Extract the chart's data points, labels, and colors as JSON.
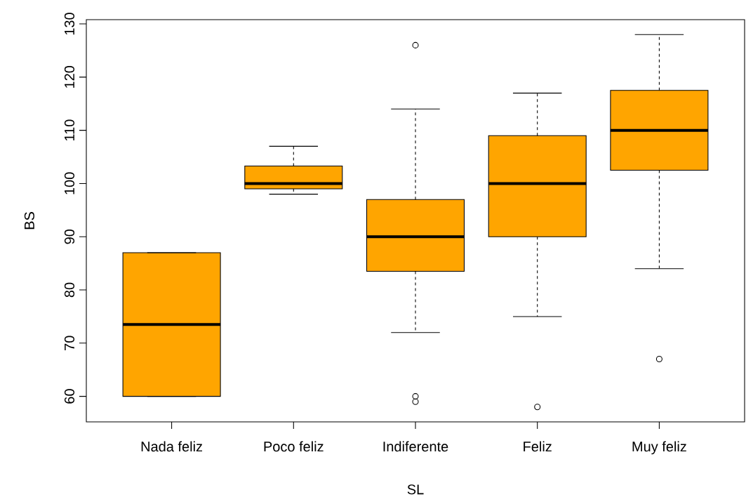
{
  "chart_data": {
    "type": "box",
    "xlabel": "SL",
    "ylabel": "BS",
    "categories": [
      "Nada feliz",
      "Poco feliz",
      "Indiferente",
      "Feliz",
      "Muy feliz"
    ],
    "color": "#ffa500",
    "ylim": [
      55.2,
      130.8
    ],
    "yticks": [
      60,
      70,
      80,
      90,
      100,
      110,
      120,
      130
    ],
    "boxes": [
      {
        "low": 60,
        "q1": 60,
        "median": 73.5,
        "q3": 87,
        "high": 87
      },
      {
        "low": 98,
        "q1": 99,
        "median": 100,
        "q3": 103.3,
        "high": 107
      },
      {
        "low": 72,
        "q1": 83.5,
        "median": 90,
        "q3": 97,
        "high": 114,
        "outliers": [
          126,
          60,
          59
        ]
      },
      {
        "low": 75,
        "q1": 90,
        "median": 100,
        "q3": 109,
        "high": 117,
        "outliers": [
          58
        ]
      },
      {
        "low": 84,
        "q1": 102.5,
        "median": 110,
        "q3": 117.5,
        "high": 128,
        "outliers": [
          67
        ]
      }
    ]
  }
}
